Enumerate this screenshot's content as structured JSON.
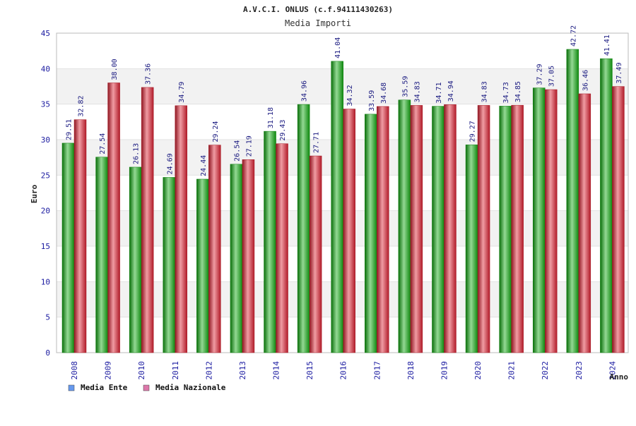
{
  "chart_data": {
    "type": "bar",
    "title": "A.V.C.I. ONLUS (c.f.94111430263)",
    "subtitle": "Media Importi",
    "xlabel": "Anno",
    "ylabel": "Euro",
    "ylim": [
      0,
      45
    ],
    "yticks": [
      0,
      5,
      10,
      15,
      20,
      25,
      30,
      35,
      40,
      45
    ],
    "grid": true,
    "legend_position": "bottom-left",
    "categories": [
      "2008",
      "2009",
      "2010",
      "2011",
      "2012",
      "2013",
      "2014",
      "2015",
      "2016",
      "2017",
      "2018",
      "2019",
      "2020",
      "2021",
      "2022",
      "2023",
      "2024"
    ],
    "series": [
      {
        "name": "Media Ente",
        "values": [
          29.51,
          27.54,
          26.13,
          24.69,
          24.44,
          26.54,
          31.18,
          34.96,
          41.04,
          33.59,
          35.59,
          34.71,
          29.27,
          34.73,
          37.29,
          42.72,
          41.41
        ],
        "labels": [
          "29.51",
          "27.54",
          "26.13",
          "24.69",
          "24.44",
          "26.54",
          "31.18",
          "34.96",
          "41.04",
          "33.59",
          "35.59",
          "34.71",
          "29.27",
          "34.73",
          "37.29",
          "42.72",
          "41.41"
        ],
        "color": "#11aa11"
      },
      {
        "name": "Media Nazionale",
        "values": [
          32.82,
          38.0,
          37.36,
          34.79,
          29.24,
          27.19,
          29.43,
          27.71,
          34.32,
          34.68,
          34.83,
          34.94,
          34.83,
          34.85,
          37.05,
          36.46,
          37.49
        ],
        "labels": [
          "32.82",
          "38.00",
          "37.36",
          "34.79",
          "29.24",
          "27.19",
          "29.43",
          "27.71",
          "34.32",
          "34.68",
          "34.83",
          "34.94",
          "34.83",
          "34.85",
          "37.05",
          "36.46",
          "37.49"
        ],
        "color": "#dd2233"
      }
    ],
    "legend_marker_colors": [
      "#6699ee",
      "#dd77aa"
    ],
    "colors": {
      "band": "#f2f2f2",
      "plot_background": "#ffffff",
      "axis": "#bbbbbb",
      "tick_text": "#1a1aa0",
      "value_text": "#1a1a80"
    }
  }
}
